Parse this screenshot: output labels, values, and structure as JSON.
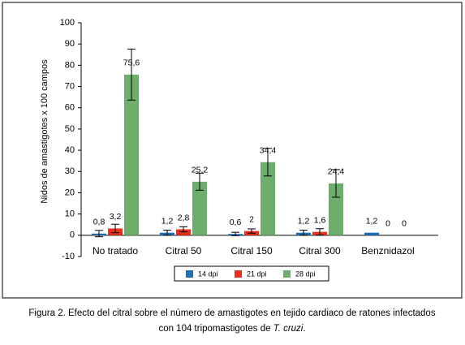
{
  "chart_data": {
    "type": "bar",
    "y_label": "Nidos de amastigotes x 100 campos",
    "categories": [
      "No tratado",
      "Citral 50",
      "Citral 150",
      "Citral 300",
      "Benznidazol"
    ],
    "series": [
      {
        "name": "14 dpi",
        "color": "#1f6fb5",
        "values": [
          0.8,
          1.2,
          0.6,
          1.2,
          1.2
        ],
        "value_labels": [
          "0,8",
          "1,2",
          "0,6",
          "1,2",
          "1,2"
        ],
        "errors": [
          1.5,
          1.2,
          0.8,
          1.2,
          null
        ]
      },
      {
        "name": "21 dpi",
        "color": "#e8301c",
        "values": [
          3.2,
          2.8,
          2,
          1.6,
          0
        ],
        "value_labels": [
          "3,2",
          "2,8",
          "2",
          "1,6",
          "0"
        ],
        "errors": [
          2,
          1.2,
          1,
          1.5,
          null
        ]
      },
      {
        "name": "28 dpi",
        "color": "#6dae6c",
        "values": [
          75.6,
          25.2,
          34.4,
          24.4,
          0
        ],
        "value_labels": [
          "75,6",
          "25,2",
          "34,4",
          "24,4",
          "0"
        ],
        "errors": [
          12,
          4,
          6.5,
          6.5,
          null
        ]
      }
    ],
    "ylim": [
      -10,
      100
    ],
    "yticks": [
      -10,
      0,
      10,
      20,
      30,
      40,
      50,
      60,
      70,
      80,
      90,
      100
    ],
    "legend": "bottom"
  },
  "caption": {
    "line1": "Figura 2. Efecto del citral sobre el número de amastigotes en tejido cardiaco de ratones infectados",
    "line2": "con 104 tripomastigotes de ",
    "italic": "T. cruzi",
    "end": "."
  }
}
